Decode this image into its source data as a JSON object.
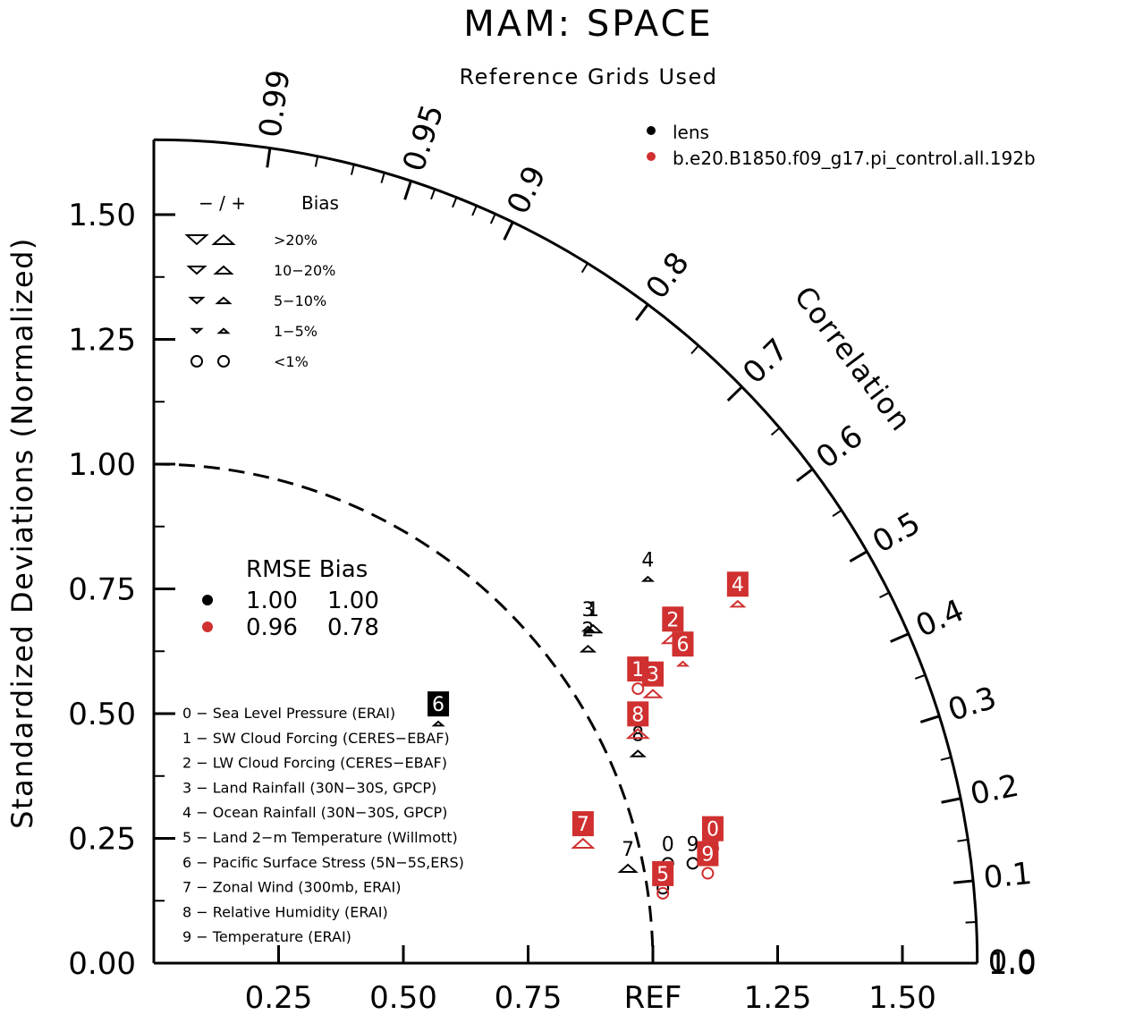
{
  "chart_data": {
    "type": "taylor",
    "title": "MAM: SPACE",
    "subtitle": "Reference Grids Used",
    "ylabel": "Standardized Deviations (Normalized)",
    "corr_label": "Correlation",
    "ref_label": "REF",
    "std_range": [
      0,
      1.65
    ],
    "y_ticks": [
      "0.00",
      "0.25",
      "0.50",
      "0.75",
      "1.00",
      "1.25",
      "1.50"
    ],
    "x_ticks": [
      "0.25",
      "0.50",
      "0.75",
      "1.25",
      "1.50"
    ],
    "x_end_label": "1.0",
    "corr_ticks": [
      "0.0",
      "0.1",
      "0.2",
      "0.3",
      "0.4",
      "0.5",
      "0.6",
      "0.7",
      "0.8",
      "0.9",
      "0.95",
      "0.99"
    ],
    "series_legend": [
      {
        "name": "lens",
        "color": "#000000"
      },
      {
        "name": "b.e20.B1850.f09_g17.pi_control.all.192b",
        "color": "#d03030"
      }
    ],
    "bias_legend": {
      "header_signs": "−  /  +",
      "header_label": "Bias",
      "rows": [
        "&gt;20%",
        "10−20%",
        "5−10%",
        "1−5%",
        "<1%"
      ]
    },
    "stats_legend": {
      "header": "RMSE Bias",
      "rows": [
        {
          "rmse": "1.00",
          "bias": "1.00",
          "color": "#000000"
        },
        {
          "rmse": "0.96",
          "bias": "0.78",
          "color": "#d03030"
        }
      ]
    },
    "variables": [
      "0 − Sea Level Pressure (ERAI)",
      "1 − SW Cloud Forcing (CERES−EBAF)",
      "2 − LW Cloud Forcing (CERES−EBAF)",
      "3 − Land Rainfall (30N−30S, GPCP)",
      "4 − Ocean Rainfall (30N−30S, GPCP)",
      "5 − Land 2−m Temperature (Willmott)",
      "6 − Pacific Surface Stress (5N−5S,ERS)",
      "7 − Zonal Wind (300mb, ERAI)",
      "8 − Relative Humidity (ERAI)",
      "9 − Temperature (ERAI)"
    ],
    "points": [
      {
        "series": 0,
        "label": "0",
        "x": 1.03,
        "y": 0.2,
        "marker": "circle",
        "size": 0,
        "dir": "up"
      },
      {
        "series": 0,
        "label": "1",
        "x": 0.88,
        "y": 0.67,
        "marker": "tri",
        "size": 3,
        "dir": "up"
      },
      {
        "series": 0,
        "label": "2",
        "x": 0.87,
        "y": 0.63,
        "marker": "tri",
        "size": 2,
        "dir": "up"
      },
      {
        "series": 0,
        "label": "3",
        "x": 0.87,
        "y": 0.67,
        "marker": "tri",
        "size": 1,
        "dir": "up"
      },
      {
        "series": 0,
        "label": "4",
        "x": 0.99,
        "y": 0.77,
        "marker": "tri",
        "size": 1,
        "dir": "up"
      },
      {
        "series": 0,
        "label": "5",
        "x": 1.02,
        "y": 0.15,
        "marker": "circle",
        "size": 0,
        "dir": "up"
      },
      {
        "series": 0,
        "label": "6",
        "x": 0.57,
        "y": 0.48,
        "marker": "tri",
        "size": 1,
        "dir": "up"
      },
      {
        "series": 0,
        "label": "7",
        "x": 0.95,
        "y": 0.19,
        "marker": "tri",
        "size": 3,
        "dir": "up"
      },
      {
        "series": 0,
        "label": "8",
        "x": 0.97,
        "y": 0.42,
        "marker": "tri",
        "size": 2,
        "dir": "up"
      },
      {
        "series": 0,
        "label": "9",
        "x": 1.08,
        "y": 0.2,
        "marker": "circle",
        "size": 0,
        "dir": "up"
      },
      {
        "series": 1,
        "label": "0",
        "x": 1.12,
        "y": 0.23,
        "marker": "circle",
        "size": 0,
        "dir": "up"
      },
      {
        "series": 1,
        "label": "1",
        "x": 0.97,
        "y": 0.55,
        "marker": "circle",
        "size": 0,
        "dir": "up"
      },
      {
        "series": 1,
        "label": "2",
        "x": 1.04,
        "y": 0.65,
        "marker": "tri",
        "size": 4,
        "dir": "up"
      },
      {
        "series": 1,
        "label": "3",
        "x": 1.0,
        "y": 0.54,
        "marker": "tri",
        "size": 3,
        "dir": "up"
      },
      {
        "series": 1,
        "label": "4",
        "x": 1.17,
        "y": 0.72,
        "marker": "tri",
        "size": 2,
        "dir": "up"
      },
      {
        "series": 1,
        "label": "5",
        "x": 1.02,
        "y": 0.14,
        "marker": "circle",
        "size": 0,
        "dir": "up"
      },
      {
        "series": 1,
        "label": "6",
        "x": 1.06,
        "y": 0.6,
        "marker": "tri",
        "size": 1,
        "dir": "up"
      },
      {
        "series": 1,
        "label": "7",
        "x": 0.86,
        "y": 0.24,
        "marker": "tri",
        "size": 4,
        "dir": "up"
      },
      {
        "series": 1,
        "label": "8",
        "x": 0.97,
        "y": 0.46,
        "marker": "tri",
        "size": 4,
        "dir": "up"
      },
      {
        "series": 1,
        "label": "9",
        "x": 1.11,
        "y": 0.18,
        "marker": "circle",
        "size": 0,
        "dir": "up"
      }
    ]
  }
}
